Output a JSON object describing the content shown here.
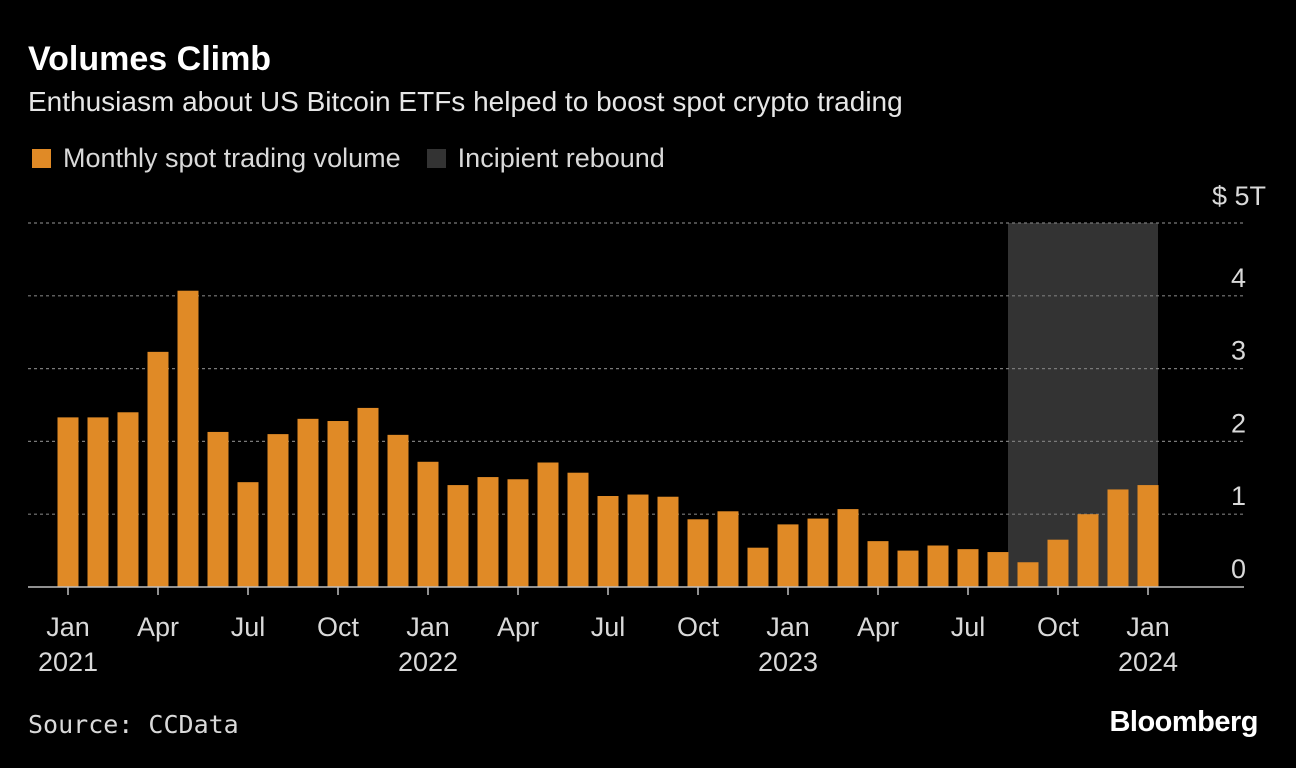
{
  "chart_data": {
    "type": "bar",
    "title": "Volumes Climb",
    "subtitle": "Enthusiasm about US Bitcoin ETFs helped to boost spot crypto trading",
    "source": "Source: CCData",
    "brand": "Bloomberg",
    "y_unit_label": "$ 5T",
    "ylim": [
      0,
      5
    ],
    "yticks": [
      0,
      1,
      2,
      3,
      4
    ],
    "ytick_labels": [
      "0",
      "1",
      "2",
      "3",
      "4"
    ],
    "grid": true,
    "legend_placement": "top-left",
    "legend": [
      {
        "label": "Monthly spot trading volume",
        "color": "#e08a26"
      },
      {
        "label": "Incipient rebound",
        "color": "#333333"
      }
    ],
    "x": [
      "2021-01",
      "2021-02",
      "2021-03",
      "2021-04",
      "2021-05",
      "2021-06",
      "2021-07",
      "2021-08",
      "2021-09",
      "2021-10",
      "2021-11",
      "2021-12",
      "2022-01",
      "2022-02",
      "2022-03",
      "2022-04",
      "2022-05",
      "2022-06",
      "2022-07",
      "2022-08",
      "2022-09",
      "2022-10",
      "2022-11",
      "2022-12",
      "2023-01",
      "2023-02",
      "2023-03",
      "2023-04",
      "2023-05",
      "2023-06",
      "2023-07",
      "2023-08",
      "2023-09",
      "2023-10",
      "2023-11",
      "2023-12",
      "2024-01"
    ],
    "series": [
      {
        "name": "Monthly spot trading volume",
        "color": "#e08a26",
        "values": [
          2.33,
          2.33,
          2.4,
          3.23,
          4.07,
          2.13,
          1.44,
          2.1,
          2.31,
          2.28,
          2.46,
          2.09,
          1.72,
          1.4,
          1.51,
          1.48,
          1.71,
          1.57,
          1.25,
          1.27,
          1.24,
          0.93,
          1.04,
          0.54,
          0.86,
          0.94,
          1.07,
          0.63,
          0.5,
          0.57,
          0.52,
          0.48,
          0.34,
          0.65,
          1.0,
          1.34,
          1.4
        ]
      }
    ],
    "shaded_region": {
      "label": "Incipient rebound",
      "from": "2023-09",
      "to": "2024-01",
      "color": "#333333"
    },
    "x_tick_labels": [
      {
        "at": "2021-01",
        "month": "Jan",
        "year": "2021"
      },
      {
        "at": "2021-04",
        "month": "Apr",
        "year": ""
      },
      {
        "at": "2021-07",
        "month": "Jul",
        "year": ""
      },
      {
        "at": "2021-10",
        "month": "Oct",
        "year": ""
      },
      {
        "at": "2022-01",
        "month": "Jan",
        "year": "2022"
      },
      {
        "at": "2022-04",
        "month": "Apr",
        "year": ""
      },
      {
        "at": "2022-07",
        "month": "Jul",
        "year": ""
      },
      {
        "at": "2022-10",
        "month": "Oct",
        "year": ""
      },
      {
        "at": "2023-01",
        "month": "Jan",
        "year": "2023"
      },
      {
        "at": "2023-04",
        "month": "Apr",
        "year": ""
      },
      {
        "at": "2023-07",
        "month": "Jul",
        "year": ""
      },
      {
        "at": "2023-10",
        "month": "Oct",
        "year": ""
      },
      {
        "at": "2024-01",
        "month": "Jan",
        "year": "2024"
      }
    ]
  }
}
